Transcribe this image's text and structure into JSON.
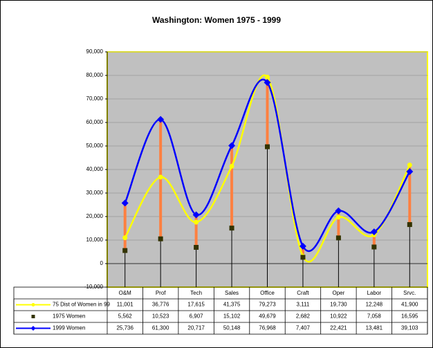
{
  "chart_data": {
    "type": "line",
    "title": "Washington: Women 1975 - 1999",
    "categories": [
      "O&M",
      "Prof",
      "Tech",
      "Sales",
      "Office",
      "Craft",
      "Oper",
      "Labor",
      "Srvc."
    ],
    "series": [
      {
        "name": "75 Dist of Women in 99",
        "color": "#ffff00",
        "marker": "circle",
        "smooth": true,
        "values": [
          11001,
          36776,
          17615,
          41375,
          79273,
          3111,
          19730,
          12248,
          41900
        ],
        "value_labels": [
          "11,001",
          "36,776",
          "17,615",
          "41,375",
          "79,273",
          "3,111",
          "19,730",
          "12,248",
          "41,900"
        ]
      },
      {
        "name": "1975 Women",
        "color": "#333300",
        "marker": "square",
        "smooth": false,
        "values": [
          5562,
          10523,
          6907,
          15102,
          49679,
          2682,
          10922,
          7058,
          16595
        ],
        "value_labels": [
          "5,562",
          "10,523",
          "6,907",
          "15,102",
          "49,679",
          "2,682",
          "10,922",
          "7,058",
          "16,595"
        ]
      },
      {
        "name": "1999 Women",
        "color": "#0000ff",
        "marker": "diamond",
        "smooth": true,
        "values": [
          25736,
          61300,
          20717,
          50148,
          76968,
          7407,
          22421,
          13481,
          39103
        ],
        "value_labels": [
          "25,736",
          "61,300",
          "20,717",
          "50,148",
          "76,968",
          "7,407",
          "22,421",
          "13,481",
          "39,103"
        ]
      }
    ],
    "high_low_color": "#ff8040",
    "ylim": [
      -10000,
      90000
    ],
    "yticks": [
      {
        "value": -10000,
        "label": "-10,000"
      },
      0,
      {
        "value": 10000,
        "label": "10,000"
      },
      {
        "value": 20000,
        "label": "20,000"
      },
      {
        "value": 30000,
        "label": "30,000"
      },
      {
        "value": 40000,
        "label": "40,000"
      },
      {
        "value": 50000,
        "label": "50,000"
      },
      {
        "value": 60000,
        "label": "60,000"
      },
      {
        "value": 70000,
        "label": "70,000"
      },
      {
        "value": 80000,
        "label": "80,000"
      },
      {
        "value": 90000,
        "label": "90,000"
      }
    ],
    "grid": true
  }
}
